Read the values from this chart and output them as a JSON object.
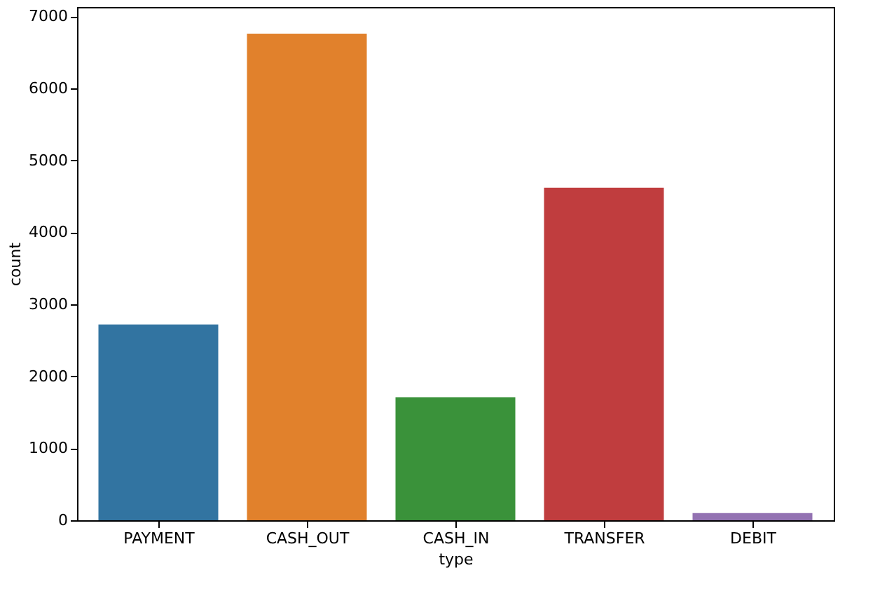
{
  "chart_data": {
    "type": "bar",
    "xlabel": "type",
    "ylabel": "count",
    "categories": [
      "PAYMENT",
      "CASH_OUT",
      "CASH_IN",
      "TRANSFER",
      "DEBIT"
    ],
    "values": [
      2720,
      6760,
      1710,
      4620,
      100
    ],
    "colors": [
      "#3274a1",
      "#e1812c",
      "#3a923a",
      "#c03d3e",
      "#9372b2"
    ],
    "ylim": [
      0,
      7130
    ],
    "yticks": [
      0,
      1000,
      2000,
      3000,
      4000,
      5000,
      6000,
      7000
    ],
    "grid": false,
    "legend": false
  }
}
